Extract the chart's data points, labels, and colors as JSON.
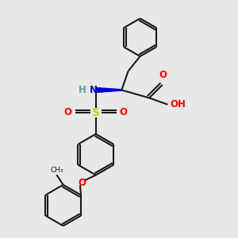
{
  "bg": "#e8e8e8",
  "lc": "#1a1a1a",
  "bw": 1.5,
  "colors": {
    "N": "#0000cd",
    "O": "#ff0000",
    "S": "#cccc00",
    "H": "#5f9ea0",
    "C": "#1a1a1a"
  },
  "figsize": [
    3.0,
    3.0
  ],
  "dpi": 100
}
